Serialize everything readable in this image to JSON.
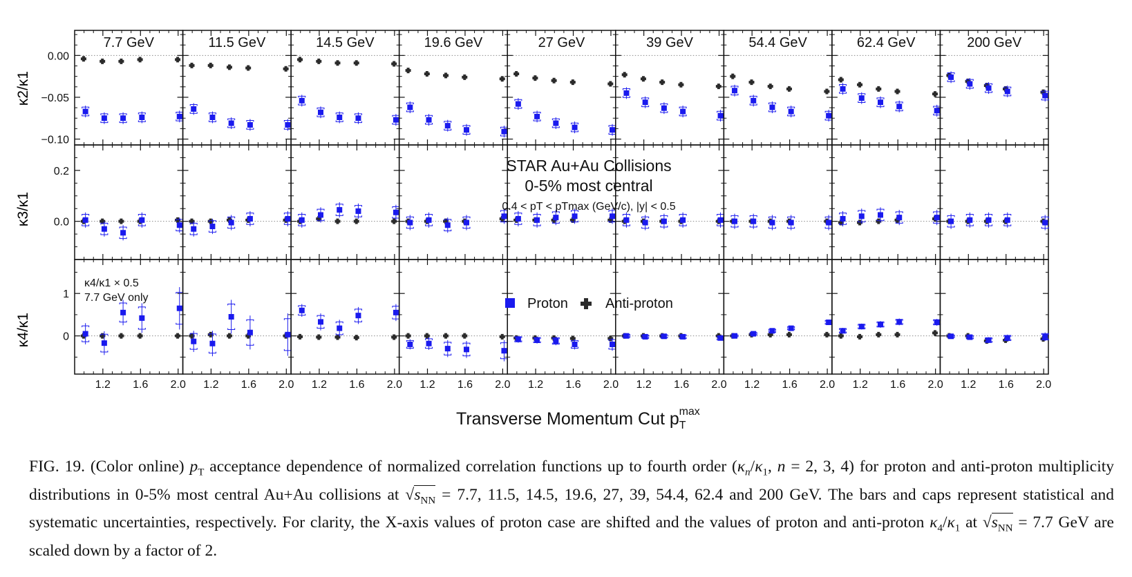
{
  "figure": {
    "energy_labels": [
      "7.7 GeV",
      "11.5 GeV",
      "14.5 GeV",
      "19.6 GeV",
      "27 GeV",
      "39 GeV",
      "54.4 GeV",
      "62.4 GeV",
      "200 GeV"
    ],
    "row_ylabels": [
      "κ2/κ1",
      "κ3/κ1",
      "κ4/κ1"
    ],
    "row_yticks": [
      [
        "0.00",
        "−0.05",
        "−0.10"
      ],
      [
        "0.2",
        "0.0"
      ],
      [
        "1",
        "0"
      ]
    ],
    "xtick_labels": [
      "1.2",
      "1.6",
      "2.0"
    ],
    "xlabel": "Transverse Momentum Cut p",
    "xlabel_sub": "T",
    "xlabel_sup": "max",
    "annotation_title": "STAR Au+Au Collisions",
    "annotation_centrality": "0-5% most central",
    "annotation_cuts": "0.4 < pT < pTmax (GeV/c), |y| < 0.5",
    "scale_note_line1": "κ4/κ1 × 0.5",
    "scale_note_line2": "7.7 GeV only",
    "legend_proton": "Proton",
    "legend_antiproton": "Anti-proton",
    "colors": {
      "proton": "#1a1aee",
      "antiproton": "#2b2b2b",
      "refline": "#888888"
    }
  },
  "caption": {
    "label": "FIG. 19.",
    "part1": "(Color online) ",
    "pt": "p",
    "pt_sub": "T",
    "part2": " acceptance dependence of normalized correlation functions up to fourth order (",
    "kn": "κ",
    "kn_sub": "n",
    "slash": "/",
    "k1": "κ",
    "k1_sub": "1",
    "part3": ", ",
    "n_eq": "n",
    "part4": " = 2, 3, 4) for proton and anti-proton multiplicity distributions in 0-5% most central Au+Au collisions at ",
    "sqrt_s": "s",
    "sqrt_sub": "NN",
    "part5": " = 7.7, 11.5, 14.5, 19.6, 27, 39, 54.4, 62.4 and 200 GeV. The bars and caps represent statistical and systematic uncertainties, respectively. For clarity, the X-axis values of proton case are shifted and the values of proton and anti-proton ",
    "k4": "κ",
    "k4_sub": "4",
    "slash2": "/",
    "k1b": "κ",
    "k1b_sub": "1",
    "part6": " at ",
    "sqrt_s2": "s",
    "sqrt_sub2": "NN",
    "part7": " = 7.7 GeV are scaled down by a factor of 2."
  },
  "chart_data": {
    "type": "scatter",
    "x": [
      1.0,
      1.2,
      1.4,
      1.6,
      2.0
    ],
    "energies": [
      "7.7 GeV",
      "11.5 GeV",
      "14.5 GeV",
      "19.6 GeV",
      "27 GeV",
      "39 GeV",
      "54.4 GeV",
      "62.4 GeV",
      "200 GeV"
    ],
    "xlim": [
      0.9,
      2.05
    ],
    "rows": [
      {
        "ylabel": "κ2/κ1",
        "ylim": [
          -0.107,
          0.03
        ],
        "proton": [
          [
            -0.067,
            -0.075,
            -0.075,
            -0.074,
            -0.073
          ],
          [
            -0.064,
            -0.074,
            -0.081,
            -0.083,
            -0.083
          ],
          [
            -0.054,
            -0.068,
            -0.074,
            -0.075,
            -0.077
          ],
          [
            -0.062,
            -0.077,
            -0.084,
            -0.089,
            -0.091
          ],
          [
            -0.058,
            -0.073,
            -0.081,
            -0.086,
            -0.089
          ],
          [
            -0.045,
            -0.056,
            -0.063,
            -0.067,
            -0.072
          ],
          [
            -0.042,
            -0.054,
            -0.062,
            -0.067,
            -0.072
          ],
          [
            -0.04,
            -0.051,
            -0.056,
            -0.061,
            -0.066
          ],
          [
            -0.026,
            -0.034,
            -0.039,
            -0.043,
            -0.048
          ]
        ],
        "antiproton": [
          [
            -0.004,
            -0.007,
            -0.007,
            -0.005,
            -0.005
          ],
          [
            -0.012,
            -0.012,
            -0.014,
            -0.015,
            -0.016
          ],
          [
            -0.005,
            -0.007,
            -0.009,
            -0.009,
            -0.01
          ],
          [
            -0.018,
            -0.022,
            -0.024,
            -0.026,
            -0.028
          ],
          [
            -0.022,
            -0.027,
            -0.03,
            -0.032,
            -0.034
          ],
          [
            -0.023,
            -0.028,
            -0.032,
            -0.035,
            -0.037
          ],
          [
            -0.025,
            -0.032,
            -0.037,
            -0.04,
            -0.043
          ],
          [
            -0.029,
            -0.035,
            -0.04,
            -0.043,
            -0.046
          ],
          [
            -0.024,
            -0.031,
            -0.036,
            -0.04,
            -0.044
          ]
        ],
        "proton_err": 0.007,
        "antiproton_err": 0.002
      },
      {
        "ylabel": "κ3/κ1",
        "ylim": [
          -0.15,
          0.3
        ],
        "proton": [
          [
            0.005,
            -0.03,
            -0.045,
            0.005,
            -0.015
          ],
          [
            -0.03,
            -0.02,
            -0.005,
            0.01,
            0.01
          ],
          [
            0.005,
            0.025,
            0.045,
            0.04,
            0.035
          ],
          [
            -0.005,
            0.005,
            -0.015,
            -0.005,
            0.02
          ],
          [
            0.01,
            0.005,
            0.015,
            0.02,
            0.02
          ],
          [
            0.005,
            -0.005,
            0.0,
            0.005,
            0.005
          ],
          [
            0.0,
            0.0,
            -0.005,
            -0.005,
            -0.005
          ],
          [
            0.01,
            0.02,
            0.025,
            0.015,
            0.015
          ],
          [
            0.0,
            0.005,
            0.005,
            0.005,
            -0.005
          ]
        ],
        "antiproton": [
          [
            0.0,
            0.0,
            0.0,
            0.0,
            0.005
          ],
          [
            0.0,
            0.0,
            0.005,
            0.005,
            0.005
          ],
          [
            0.0,
            0.01,
            0.0,
            0.0,
            0.0
          ],
          [
            0.0,
            0.0,
            0.0,
            0.0,
            0.01
          ],
          [
            0.005,
            0.005,
            0.005,
            0.005,
            0.005
          ],
          [
            0.0,
            0.0,
            0.0,
            0.0,
            0.0
          ],
          [
            0.0,
            0.0,
            0.0,
            0.0,
            0.0
          ],
          [
            -0.005,
            -0.005,
            0.0,
            0.005,
            0.01
          ],
          [
            0.0,
            0.0,
            0.0,
            0.0,
            0.0
          ]
        ],
        "proton_err": 0.03,
        "antiproton_err": 0.008
      },
      {
        "ylabel": "κ4/κ1",
        "ylim": [
          -0.9,
          1.8
        ],
        "proton": [
          [
            0.05,
            -0.17,
            0.55,
            0.42,
            0.65
          ],
          [
            -0.13,
            -0.18,
            0.45,
            0.08,
            0.03
          ],
          [
            0.6,
            0.33,
            0.18,
            0.48,
            0.55
          ],
          [
            -0.2,
            -0.18,
            -0.3,
            -0.32,
            -0.35
          ],
          [
            -0.08,
            -0.1,
            -0.12,
            -0.2,
            -0.2
          ],
          [
            0.0,
            -0.02,
            -0.01,
            -0.02,
            -0.05
          ],
          [
            0.0,
            0.05,
            0.12,
            0.18,
            0.32
          ],
          [
            0.12,
            0.22,
            0.27,
            0.33,
            0.32
          ],
          [
            -0.01,
            -0.03,
            -0.1,
            -0.05,
            -0.02
          ]
        ],
        "antiproton": [
          [
            0.0,
            0.0,
            0.0,
            0.0,
            0.0
          ],
          [
            0.0,
            0.03,
            0.0,
            0.0,
            0.0
          ],
          [
            -0.02,
            -0.03,
            -0.03,
            -0.04,
            -0.03
          ],
          [
            0.0,
            0.0,
            0.0,
            0.0,
            -0.02
          ],
          [
            -0.05,
            -0.05,
            -0.05,
            -0.06,
            -0.06
          ],
          [
            0.0,
            0.0,
            0.0,
            0.0,
            0.0
          ],
          [
            0.0,
            0.03,
            0.03,
            0.03,
            0.03
          ],
          [
            0.0,
            -0.02,
            0.03,
            0.03,
            0.07
          ],
          [
            0.0,
            0.0,
            -0.12,
            -0.1,
            -0.07
          ]
        ],
        "proton_err": [
          [
            0.25,
            0.28,
            0.3,
            0.35,
            0.5
          ],
          [
            0.25,
            0.3,
            0.4,
            0.4,
            0.5
          ],
          [
            0.15,
            0.2,
            0.2,
            0.2,
            0.2
          ],
          [
            0.12,
            0.15,
            0.2,
            0.2,
            0.25
          ],
          [
            0.08,
            0.08,
            0.1,
            0.12,
            0.15
          ],
          [
            0.05,
            0.05,
            0.05,
            0.06,
            0.06
          ],
          [
            0.03,
            0.04,
            0.05,
            0.05,
            0.06
          ],
          [
            0.07,
            0.07,
            0.08,
            0.08,
            0.08
          ],
          [
            0.04,
            0.05,
            0.07,
            0.08,
            0.1
          ]
        ],
        "antiproton_err": 0.03
      }
    ]
  }
}
